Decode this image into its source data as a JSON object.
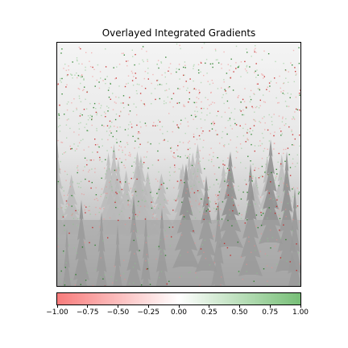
{
  "title": "Overlayed Integrated Gradients",
  "colorbar": {
    "ticks": [
      "−1.00",
      "−0.75",
      "−0.50",
      "−0.25",
      "0.00",
      "0.25",
      "0.50",
      "0.75",
      "1.00"
    ],
    "low_color": "#f87c7c",
    "mid_color": "#ffffff",
    "high_color": "#77bf77"
  }
}
